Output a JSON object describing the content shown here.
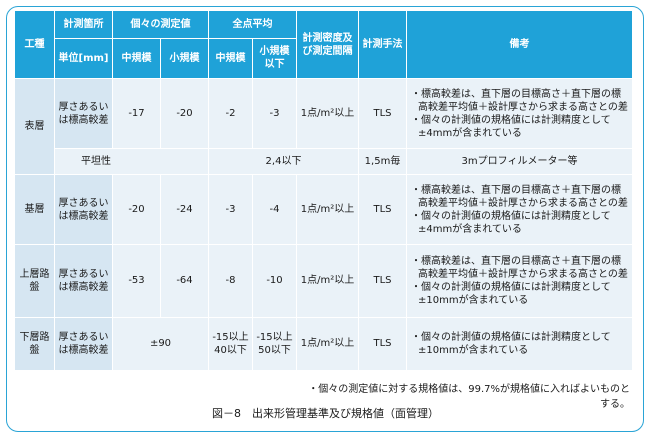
{
  "headers": {
    "kouji": "工種",
    "sokutei_kasho": "計測箇所",
    "tani": "単位[mm]",
    "kobetsu": "個々の測定値",
    "zenten": "全点平均",
    "chukibo": "中規模",
    "shokibo": "小規模",
    "shokibo_ika": "小規模以下",
    "mitsudo": "計測密度及び測定間隔",
    "shuho": "計測手法",
    "biko": "備考"
  },
  "rows": {
    "hyoso": {
      "kouji": "表層",
      "item": "厚さあるいは標高較差",
      "kobetsu_chu": "-17",
      "kobetsu_sho": "-20",
      "zenten_chu": "-2",
      "zenten_sho": "-3",
      "mitsudo": "1点/m²以上",
      "shuho": "TLS",
      "notes": [
        "・標高較差は、直下層の目標高さ＋直下層の標高較差平均値＋設計厚さから求まる高さとの差",
        "・個々の計測値の規格値には計測精度として±4mmが含まれている"
      ]
    },
    "heitan": {
      "item": "平坦性",
      "kikaku": "2,4以下",
      "mitsudo": "1,5m毎",
      "note": "3mプロフィルメーター等"
    },
    "kiso": {
      "kouji": "基層",
      "item": "厚さあるいは標高較差",
      "kobetsu_chu": "-20",
      "kobetsu_sho": "-24",
      "zenten_chu": "-3",
      "zenten_sho": "-4",
      "mitsudo": "1点/m²以上",
      "shuho": "TLS",
      "notes": [
        "・標高較差は、直下層の目標高さ＋直下層の標高較差平均値＋設計厚さから求まる高さとの差",
        "・個々の計測値の規格値には計測精度として±4mmが含まれている"
      ]
    },
    "jouso": {
      "kouji": "上層路盤",
      "item": "厚さあるいは標高較差",
      "kobetsu_chu": "-53",
      "kobetsu_sho": "-64",
      "zenten_chu": "-8",
      "zenten_sho": "-10",
      "mitsudo": "1点/m²以上",
      "shuho": "TLS",
      "notes": [
        "・標高較差は、直下層の目標高さ＋直下層の標高較差平均値＋設計厚さから求まる高さとの差",
        "・個々の計測値の規格値には計測精度として±10mmが含まれている"
      ]
    },
    "kaso": {
      "kouji": "下層路盤",
      "item": "厚さあるいは標高較差",
      "kobetsu": "±90",
      "zenten_chu": "-15以上40以下",
      "zenten_sho": "-15以上50以下",
      "mitsudo": "1点/m²以上",
      "shuho": "TLS",
      "notes": [
        "・個々の計測値の規格値には計測精度として±10mmが含まれている"
      ]
    }
  },
  "footnote": "・個々の測定値に対する規格値は、99.7%が規格値に入ればよいものとする。",
  "caption": "図－8　出来形管理基準及び規格値（面管理）"
}
